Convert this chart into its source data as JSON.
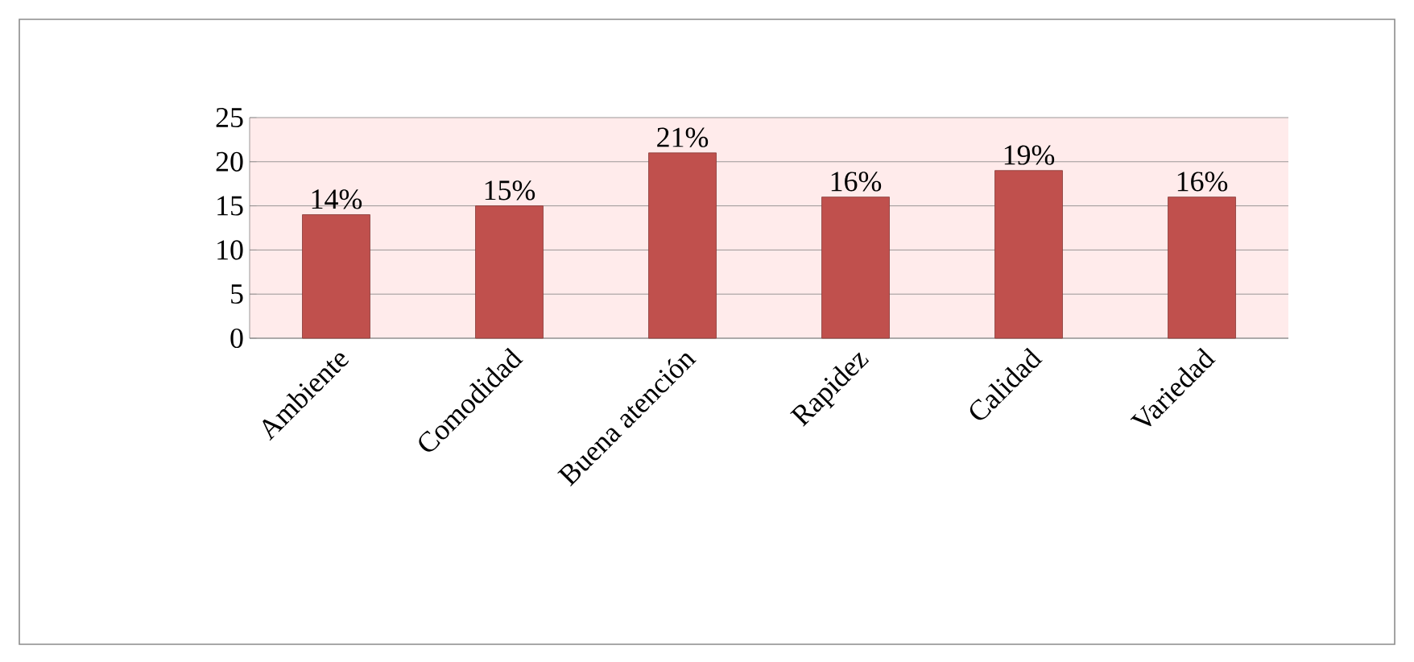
{
  "chart_data": {
    "type": "bar",
    "categories": [
      "Ambiente",
      "Comodidad",
      "Buena atención",
      "Rapidez",
      "Calidad",
      "Variedad"
    ],
    "values": [
      14,
      15,
      21,
      16,
      19,
      16
    ],
    "value_labels": [
      "14%",
      "15%",
      "21%",
      "16%",
      "19%",
      "16%"
    ],
    "color": "#c0504d",
    "ylim": [
      0,
      25
    ],
    "yticks": [
      0,
      5,
      10,
      15,
      20,
      25
    ],
    "grid": "y"
  }
}
